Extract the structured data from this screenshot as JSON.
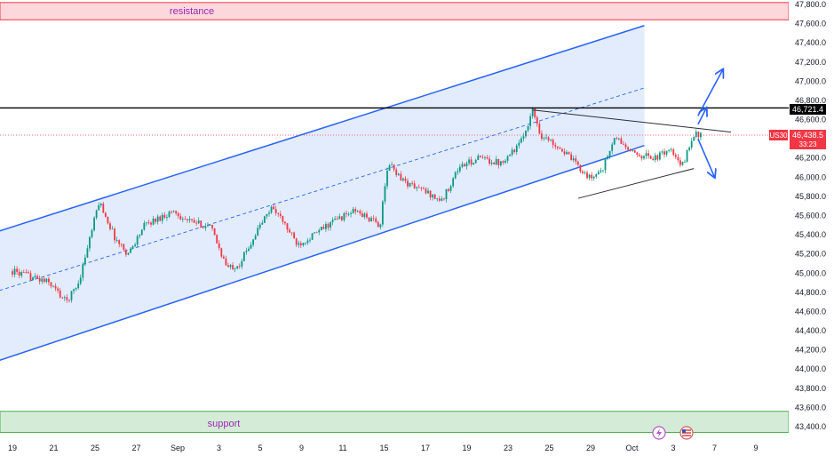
{
  "symbol": "US30",
  "colors": {
    "up": "#089981",
    "down": "#f23645",
    "channel": "#2962ff",
    "channel_fill": "#dde9fb",
    "resistance_fill": "#fcd8dc",
    "resistance_border": "#f23645",
    "support_fill": "#d4ecd7",
    "support_border": "#4caf50",
    "zone_label": "#9c27b0",
    "black_line": "#000000",
    "triangle": "#2a2e39",
    "arrow": "#2962ff"
  },
  "zones": {
    "resistance": {
      "label": "resistance",
      "from": 47640,
      "to": 47820
    },
    "support": {
      "label": "support",
      "from": 43340,
      "to": 43560
    }
  },
  "level_line": {
    "value": 46721.4,
    "label": "46,721.4"
  },
  "price_badge": {
    "symbol": "US30",
    "price": "46,438.5",
    "countdown": "33:23"
  },
  "icons": {
    "event_1": "lightning-event-icon",
    "event_2": "us-flag-event-icon"
  },
  "chart_data": {
    "type": "candlestick",
    "title": "",
    "y_axis": {
      "ticks": [
        "47,800.0",
        "47,600.0",
        "47,400.0",
        "47,200.0",
        "47,000.0",
        "46,800.0",
        "46,600.0",
        "46,400.0",
        "46,200.0",
        "46,000.0",
        "45,800.0",
        "45,600.0",
        "45,400.0",
        "45,200.0",
        "45,000.0",
        "44,800.0",
        "44,600.0",
        "44,400.0",
        "44,200.0",
        "44,000.0",
        "43,800.0",
        "43,600.0",
        "43,400.0"
      ],
      "range": [
        43300,
        47880
      ]
    },
    "x_axis": {
      "ticks": [
        "19",
        "21",
        "25",
        "27",
        "Sep",
        "3",
        "5",
        "9",
        "11",
        "15",
        "17",
        "19",
        "23",
        "25",
        "29",
        "Oct",
        "3",
        "7",
        "9"
      ]
    },
    "series_path": [
      [
        0,
        45020
      ],
      [
        0.9,
        44900
      ],
      [
        1.3,
        44700
      ],
      [
        1.6,
        44900
      ],
      [
        2.1,
        45750
      ],
      [
        2.5,
        45350
      ],
      [
        2.8,
        45200
      ],
      [
        3.2,
        45500
      ],
      [
        3.9,
        45650
      ],
      [
        4.2,
        45550
      ],
      [
        4.8,
        45480
      ],
      [
        5.2,
        45050
      ],
      [
        5.5,
        45100
      ],
      [
        6.0,
        45500
      ],
      [
        6.3,
        45700
      ],
      [
        6.9,
        45300
      ],
      [
        7.3,
        45400
      ],
      [
        7.8,
        45550
      ],
      [
        8.3,
        45650
      ],
      [
        8.9,
        45500
      ],
      [
        9.1,
        46150
      ],
      [
        9.5,
        45950
      ],
      [
        10.0,
        45850
      ],
      [
        10.4,
        45750
      ],
      [
        10.8,
        46100
      ],
      [
        11.3,
        46200
      ],
      [
        11.8,
        46150
      ],
      [
        12.3,
        46350
      ],
      [
        12.6,
        46700
      ],
      [
        12.8,
        46430
      ],
      [
        13.2,
        46330
      ],
      [
        13.5,
        46200
      ],
      [
        14.0,
        45980
      ],
      [
        14.3,
        46100
      ],
      [
        14.6,
        46420
      ],
      [
        15.0,
        46250
      ],
      [
        15.6,
        46200
      ],
      [
        15.9,
        46300
      ],
      [
        16.2,
        46100
      ],
      [
        16.5,
        46450
      ],
      [
        16.7,
        46438.5
      ]
    ],
    "channel": {
      "upper": [
        [
          -0.6,
          45400
        ],
        [
          15.3,
          47580
        ]
      ],
      "middle": [
        [
          -0.6,
          44780
        ],
        [
          15.3,
          46930
        ]
      ],
      "lower": [
        [
          -0.6,
          44050
        ],
        [
          15.3,
          46330
        ]
      ]
    },
    "triangle": {
      "upper": [
        [
          12.6,
          46700
        ],
        [
          17.4,
          46470
        ]
      ],
      "lower": [
        [
          13.7,
          45780
        ],
        [
          16.5,
          46090
        ]
      ]
    },
    "arrows": [
      {
        "from": [
          16.6,
          46640
        ],
        "to": [
          17.2,
          47120
        ]
      },
      {
        "from": [
          16.6,
          46550
        ],
        "to": [
          16.8,
          46720
        ]
      },
      {
        "from": [
          16.6,
          46400
        ],
        "to": [
          17.0,
          46000
        ]
      }
    ],
    "grid": false
  }
}
